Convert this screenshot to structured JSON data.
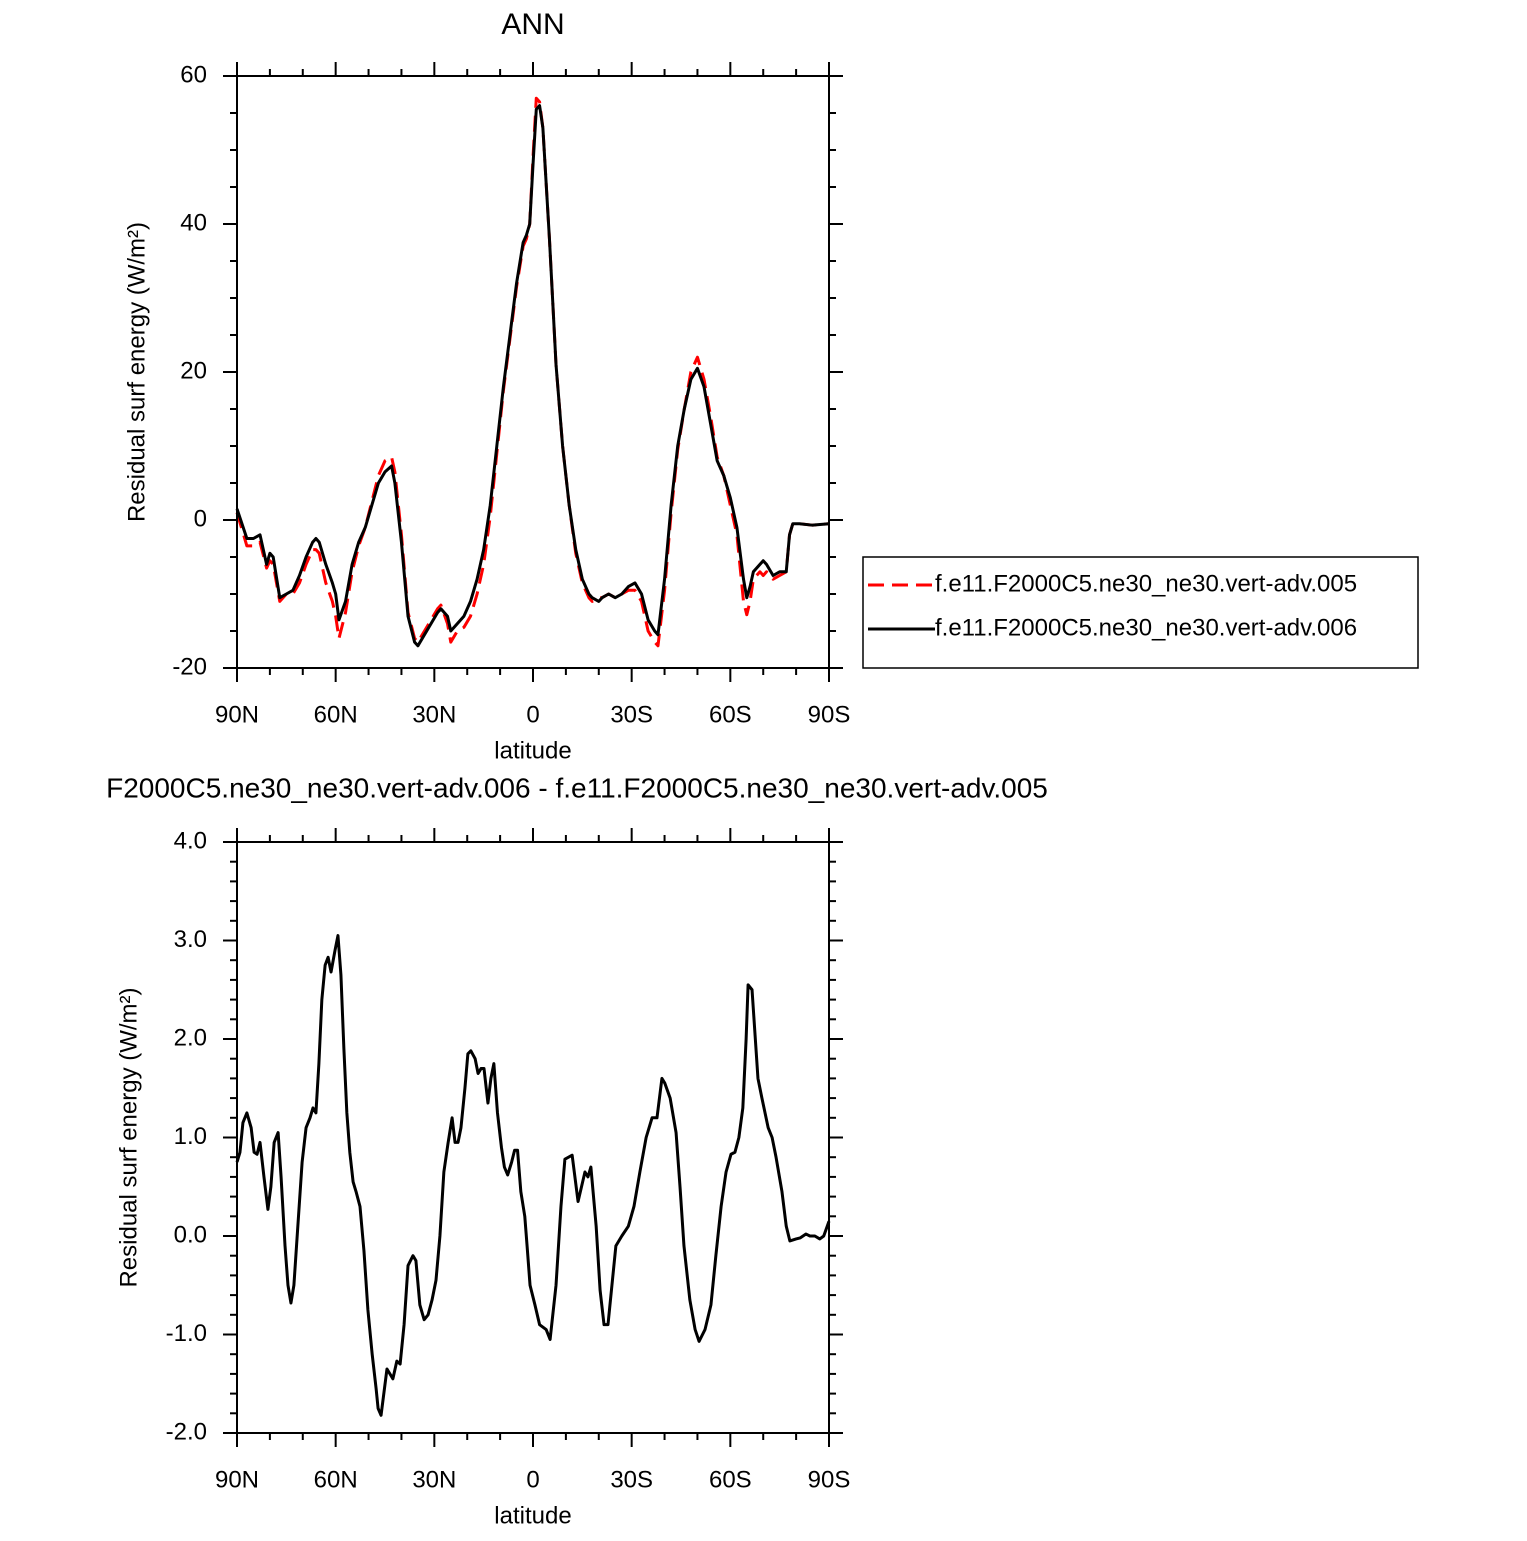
{
  "chart_data": [
    {
      "type": "line",
      "title": "ANN",
      "xlabel": "latitude",
      "ylabel": "Residual surf energy (W/m²)",
      "x": [
        90,
        87,
        85,
        83,
        81,
        80,
        79,
        77,
        75,
        73,
        71,
        69,
        67,
        66,
        65,
        63,
        61,
        60,
        59,
        57,
        55,
        53,
        51,
        49,
        47,
        45,
        43,
        42,
        40,
        38,
        36,
        35,
        33,
        31,
        29,
        28,
        26,
        25,
        23,
        21,
        19,
        17,
        15,
        13,
        11,
        9,
        7,
        5,
        3,
        2,
        1,
        0,
        -1,
        -2,
        -3,
        -5,
        -7,
        -9,
        -11,
        -13,
        -15,
        -17,
        -18,
        -20,
        -21,
        -23,
        -25,
        -27,
        -29,
        -31,
        -33,
        -35,
        -37,
        -38,
        -40,
        -42,
        -44,
        -46,
        -48,
        -50,
        -52,
        -54,
        -56,
        -58,
        -60,
        -62,
        -64,
        -65,
        -66,
        -67,
        -69,
        -70,
        -71,
        -73,
        -75,
        -77,
        -78,
        -79,
        -81,
        -85,
        -90
      ],
      "xlim": [
        90,
        -90
      ],
      "xticks": [
        {
          "value": 90,
          "label": "90N"
        },
        {
          "value": 60,
          "label": "60N"
        },
        {
          "value": 30,
          "label": "30N"
        },
        0,
        {
          "value": -30,
          "label": "30S"
        },
        {
          "value": -60,
          "label": "60S"
        },
        {
          "value": -90,
          "label": "90S"
        }
      ],
      "xminorticks": [
        80,
        70,
        50,
        40,
        20,
        10,
        -10,
        -20,
        -40,
        -50,
        -70,
        -80
      ],
      "ylim": [
        -20,
        60
      ],
      "yticks": [
        -20,
        0,
        20,
        40,
        60
      ],
      "yminorticks": [
        -15,
        -10,
        -5,
        5,
        10,
        15,
        25,
        30,
        35,
        45,
        50,
        55
      ],
      "legend": "right",
      "series": [
        {
          "name": "f.e11.F2000C5.ne30_ne30.vert-adv.005",
          "color": "#ff0000",
          "dash": "dashed",
          "values": [
            1,
            -3.5,
            -3.5,
            -3,
            -6.5,
            -5.5,
            -6,
            -11,
            -10,
            -10,
            -8.5,
            -6,
            -4,
            -4,
            -4.5,
            -8.5,
            -11,
            -13,
            -16,
            -12.5,
            -7,
            -3.5,
            -1,
            2.5,
            6,
            8,
            8.5,
            6.5,
            -2,
            -12.5,
            -16,
            -16.5,
            -15,
            -13.5,
            -12,
            -11.5,
            -14,
            -16.5,
            -15,
            -14.5,
            -13,
            -10,
            -6,
            0.5,
            9,
            17.5,
            24.5,
            31.5,
            37,
            38,
            40,
            49,
            57,
            56.5,
            53,
            38,
            21,
            10,
            2,
            -4.5,
            -8.5,
            -10.5,
            -11,
            -10.5,
            -10.5,
            -10,
            -10.5,
            -10,
            -9.5,
            -9.5,
            -11,
            -15,
            -16.5,
            -17,
            -9.5,
            1,
            9.5,
            15,
            20,
            22,
            19,
            14,
            8.5,
            6,
            2,
            -2,
            -11,
            -12.8,
            -11,
            -8,
            -7,
            -7.5,
            -7,
            -8,
            -7.5,
            -7,
            -2,
            -0.5,
            -0.5,
            -0.7,
            -0.5
          ]
        },
        {
          "name": "f.e11.F2000C5.ne30_ne30.vert-adv.006",
          "color": "#000000",
          "dash": "solid",
          "values": [
            1.5,
            -2.5,
            -2.5,
            -2,
            -6,
            -4.5,
            -5,
            -10.5,
            -10,
            -9.5,
            -7.5,
            -5,
            -3,
            -2.5,
            -3,
            -6,
            -8.5,
            -10,
            -13.5,
            -11,
            -6,
            -3,
            -1,
            2,
            5,
            6.5,
            7.3,
            5,
            -3,
            -13,
            -16.5,
            -17,
            -15.5,
            -14,
            -12.5,
            -12,
            -13,
            -15,
            -14,
            -13,
            -11,
            -8,
            -4,
            2,
            10,
            18,
            25,
            32,
            37.5,
            38.5,
            40,
            48,
            55.5,
            56,
            53,
            38,
            21,
            10,
            2,
            -4,
            -8,
            -10,
            -10.5,
            -11,
            -10.5,
            -10,
            -10.5,
            -10,
            -9,
            -8.5,
            -10,
            -13.5,
            -15,
            -15.5,
            -8,
            2,
            10,
            15,
            19,
            20.5,
            18,
            13,
            8,
            6,
            3,
            -1,
            -8,
            -10.5,
            -9,
            -7,
            -6,
            -5.5,
            -6,
            -7.5,
            -7,
            -7,
            -2,
            -0.5,
            -0.5,
            -0.7,
            -0.5
          ]
        }
      ]
    },
    {
      "type": "line",
      "title": "F2000C5.ne30_ne30.vert-adv.006 - f.e11.F2000C5.ne30_ne30.vert-adv.005",
      "xlabel": "latitude",
      "ylabel": "Residual surf energy (W/m²)",
      "x": [
        90,
        89.1,
        88.2,
        87,
        85.7,
        84.8,
        83.9,
        83,
        81.8,
        80.6,
        79.7,
        78.7,
        77.5,
        76.6,
        75.4,
        74.5,
        73.6,
        72.7,
        71.5,
        70.2,
        69,
        67.8,
        66.9,
        66,
        65.1,
        64.2,
        63.2,
        62.3,
        61.4,
        60.2,
        59.3,
        58.4,
        57.5,
        56.6,
        55.7,
        54.7,
        53.8,
        52.6,
        51.4,
        50.2,
        48.9,
        47.7,
        47.1,
        46.2,
        44.4,
        43.5,
        42.6,
        41.4,
        40.4,
        39.2,
        38,
        36.5,
        35.6,
        34.4,
        33.1,
        31.9,
        30.7,
        29.5,
        28.3,
        27.1,
        25.8,
        24.6,
        23.7,
        22.8,
        21.9,
        20.7,
        19.8,
        18.9,
        17.6,
        16.7,
        15.8,
        14.9,
        13.7,
        12.8,
        11.9,
        10.8,
        9.6,
        8.7,
        7.7,
        6.5,
        5.6,
        4.7,
        3.7,
        2.5,
        1.8,
        0.9,
        -0.6,
        -2,
        -4,
        -5.2,
        -7,
        -8.5,
        -9.7,
        -11.9,
        -13.7,
        -15.8,
        -16.7,
        -17.6,
        -19.2,
        -20.4,
        -21.6,
        -22.8,
        -24,
        -25.2,
        -27,
        -29,
        -30.7,
        -32.5,
        -34.4,
        -36.2,
        -37.7,
        -39.2,
        -40.1,
        -41.7,
        -43.5,
        -44.7,
        -45.9,
        -47.7,
        -49.3,
        -50.5,
        -52.3,
        -54.1,
        -55.6,
        -57.2,
        -58.7,
        -60.2,
        -61.4,
        -62.6,
        -63.8,
        -64.8,
        -65.4,
        -66.6,
        -68.4,
        -69.6,
        -71.5,
        -72.7,
        -73.9,
        -75.7,
        -77,
        -78.1,
        -80,
        -81.2,
        -83,
        -84.2,
        -85.7,
        -87.2,
        -88.4,
        -90
      ],
      "values": [
        0.75,
        0.85,
        1.15,
        1.25,
        1.1,
        0.85,
        0.83,
        0.95,
        0.6,
        0.27,
        0.5,
        0.95,
        1.05,
        0.6,
        -0.1,
        -0.5,
        -0.68,
        -0.5,
        0.1,
        0.75,
        1.1,
        1.2,
        1.3,
        1.25,
        1.75,
        2.4,
        2.75,
        2.83,
        2.68,
        2.9,
        3.05,
        2.65,
        1.9,
        1.25,
        0.85,
        0.55,
        0.45,
        0.3,
        -0.15,
        -0.75,
        -1.2,
        -1.55,
        -1.75,
        -1.82,
        -1.35,
        -1.4,
        -1.45,
        -1.27,
        -1.3,
        -0.9,
        -0.3,
        -0.2,
        -0.25,
        -0.7,
        -0.85,
        -0.8,
        -0.65,
        -0.45,
        0,
        0.65,
        0.95,
        1.2,
        0.95,
        0.95,
        1.1,
        1.5,
        1.85,
        1.88,
        1.8,
        1.65,
        1.7,
        1.7,
        1.35,
        1.6,
        1.75,
        1.25,
        0.9,
        0.7,
        0.62,
        0.75,
        0.87,
        0.87,
        0.45,
        0.2,
        -0.1,
        -0.5,
        -0.7,
        -0.9,
        -0.95,
        -1.05,
        -0.5,
        0.3,
        0.78,
        0.82,
        0.35,
        0.65,
        0.6,
        0.7,
        0.1,
        -0.55,
        -0.9,
        -0.9,
        -0.5,
        -0.1,
        0,
        0.1,
        0.3,
        0.65,
        1.0,
        1.2,
        1.2,
        1.6,
        1.55,
        1.4,
        1.05,
        0.5,
        -0.1,
        -0.65,
        -0.95,
        -1.07,
        -0.95,
        -0.7,
        -0.2,
        0.3,
        0.65,
        0.83,
        0.85,
        1.0,
        1.3,
        2.0,
        2.55,
        2.5,
        1.6,
        1.4,
        1.1,
        1.0,
        0.8,
        0.45,
        0.1,
        -0.05,
        -0.03,
        -0.02,
        0.02,
        0,
        0,
        -0.03,
        0,
        0.15
      ],
      "color": "#000000",
      "xlim": [
        90,
        -90
      ],
      "xticks": [
        {
          "value": 90,
          "label": "90N"
        },
        {
          "value": 60,
          "label": "60N"
        },
        {
          "value": 30,
          "label": "30N"
        },
        0,
        {
          "value": -30,
          "label": "30S"
        },
        {
          "value": -60,
          "label": "60S"
        },
        {
          "value": -90,
          "label": "90S"
        }
      ],
      "xminorticks": [
        80,
        70,
        50,
        40,
        20,
        10,
        -10,
        -20,
        -40,
        -50,
        -70,
        -80
      ],
      "ylim": [
        -2,
        4
      ],
      "yticks": [
        {
          "value": -2,
          "label": "-2.0"
        },
        {
          "value": -1,
          "label": "-1.0"
        },
        {
          "value": 0,
          "label": "0.0"
        },
        {
          "value": 1,
          "label": "1.0"
        },
        {
          "value": 2,
          "label": "2.0"
        },
        {
          "value": 3,
          "label": "3.0"
        },
        {
          "value": 4,
          "label": "4.0"
        }
      ],
      "yminorticks": [
        -1.8,
        -1.6,
        -1.4,
        -1.2,
        -0.8,
        -0.6,
        -0.4,
        -0.2,
        0.2,
        0.4,
        0.6,
        0.8,
        1.2,
        1.4,
        1.6,
        1.8,
        2.2,
        2.4,
        2.6,
        2.8,
        3.2,
        3.4,
        3.6,
        3.8
      ]
    }
  ]
}
